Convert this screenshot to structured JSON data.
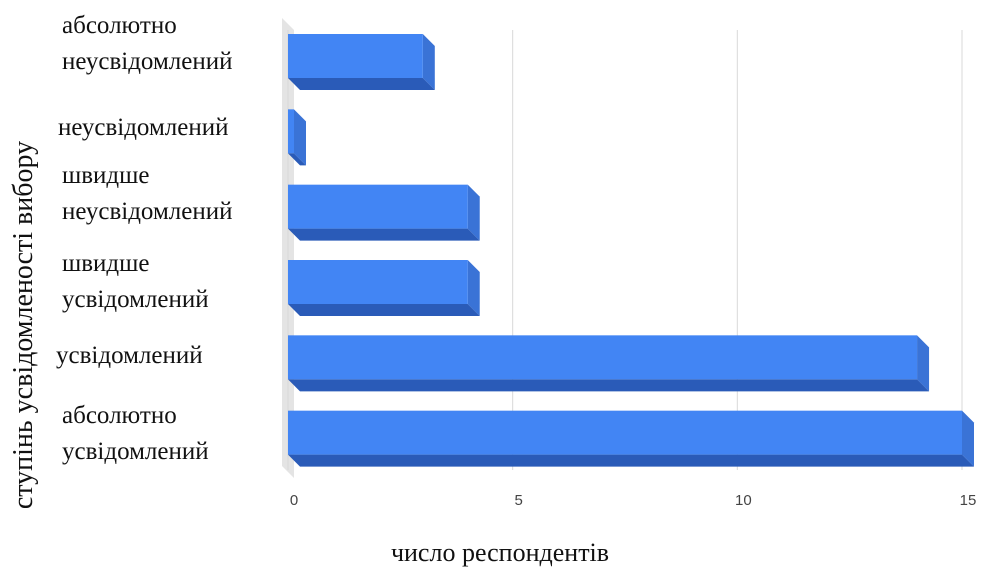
{
  "chart_data": {
    "type": "bar",
    "orientation": "horizontal",
    "categories": [
      "абсолютно\nнеусвідомлений",
      "неусвідомлений",
      "швидше\nнеусвідомлений",
      "швидше\nусвідомлений",
      "усвідомлений",
      "абсолютно\nусвідомлений"
    ],
    "values": [
      3,
      0,
      4,
      4,
      14,
      15
    ],
    "xlabel": "число респондентів",
    "ylabel": "ступінь усвідомленості вибору",
    "xlim": [
      0,
      15
    ],
    "xticks": [
      "0",
      "5",
      "10",
      "15"
    ],
    "grid": true,
    "legend": "none",
    "style": "3d",
    "colors": {
      "bar": "#4285f4",
      "bar_dark": "#2a5bb8",
      "bar_side": "#3a73d6",
      "grid": "#d9d9d9",
      "floor": "#e4e4e4"
    }
  }
}
